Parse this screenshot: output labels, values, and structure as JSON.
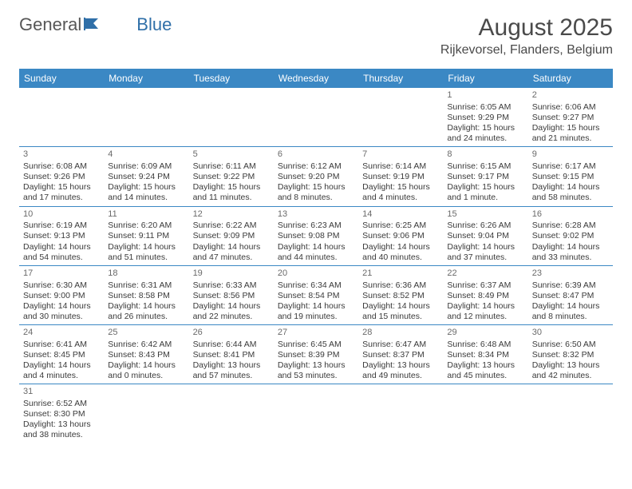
{
  "logo": {
    "text1": "General",
    "text2": "Blue"
  },
  "title": "August 2025",
  "location": "Rijkevorsel, Flanders, Belgium",
  "colors": {
    "header_bg": "#3b88c4",
    "border": "#3b88c4",
    "logo_accent": "#2f6fa8"
  },
  "weekdays": [
    "Sunday",
    "Monday",
    "Tuesday",
    "Wednesday",
    "Thursday",
    "Friday",
    "Saturday"
  ],
  "weeks": [
    [
      null,
      null,
      null,
      null,
      null,
      {
        "n": "1",
        "sr": "Sunrise: 6:05 AM",
        "ss": "Sunset: 9:29 PM",
        "d1": "Daylight: 15 hours",
        "d2": "and 24 minutes."
      },
      {
        "n": "2",
        "sr": "Sunrise: 6:06 AM",
        "ss": "Sunset: 9:27 PM",
        "d1": "Daylight: 15 hours",
        "d2": "and 21 minutes."
      }
    ],
    [
      {
        "n": "3",
        "sr": "Sunrise: 6:08 AM",
        "ss": "Sunset: 9:26 PM",
        "d1": "Daylight: 15 hours",
        "d2": "and 17 minutes."
      },
      {
        "n": "4",
        "sr": "Sunrise: 6:09 AM",
        "ss": "Sunset: 9:24 PM",
        "d1": "Daylight: 15 hours",
        "d2": "and 14 minutes."
      },
      {
        "n": "5",
        "sr": "Sunrise: 6:11 AM",
        "ss": "Sunset: 9:22 PM",
        "d1": "Daylight: 15 hours",
        "d2": "and 11 minutes."
      },
      {
        "n": "6",
        "sr": "Sunrise: 6:12 AM",
        "ss": "Sunset: 9:20 PM",
        "d1": "Daylight: 15 hours",
        "d2": "and 8 minutes."
      },
      {
        "n": "7",
        "sr": "Sunrise: 6:14 AM",
        "ss": "Sunset: 9:19 PM",
        "d1": "Daylight: 15 hours",
        "d2": "and 4 minutes."
      },
      {
        "n": "8",
        "sr": "Sunrise: 6:15 AM",
        "ss": "Sunset: 9:17 PM",
        "d1": "Daylight: 15 hours",
        "d2": "and 1 minute."
      },
      {
        "n": "9",
        "sr": "Sunrise: 6:17 AM",
        "ss": "Sunset: 9:15 PM",
        "d1": "Daylight: 14 hours",
        "d2": "and 58 minutes."
      }
    ],
    [
      {
        "n": "10",
        "sr": "Sunrise: 6:19 AM",
        "ss": "Sunset: 9:13 PM",
        "d1": "Daylight: 14 hours",
        "d2": "and 54 minutes."
      },
      {
        "n": "11",
        "sr": "Sunrise: 6:20 AM",
        "ss": "Sunset: 9:11 PM",
        "d1": "Daylight: 14 hours",
        "d2": "and 51 minutes."
      },
      {
        "n": "12",
        "sr": "Sunrise: 6:22 AM",
        "ss": "Sunset: 9:09 PM",
        "d1": "Daylight: 14 hours",
        "d2": "and 47 minutes."
      },
      {
        "n": "13",
        "sr": "Sunrise: 6:23 AM",
        "ss": "Sunset: 9:08 PM",
        "d1": "Daylight: 14 hours",
        "d2": "and 44 minutes."
      },
      {
        "n": "14",
        "sr": "Sunrise: 6:25 AM",
        "ss": "Sunset: 9:06 PM",
        "d1": "Daylight: 14 hours",
        "d2": "and 40 minutes."
      },
      {
        "n": "15",
        "sr": "Sunrise: 6:26 AM",
        "ss": "Sunset: 9:04 PM",
        "d1": "Daylight: 14 hours",
        "d2": "and 37 minutes."
      },
      {
        "n": "16",
        "sr": "Sunrise: 6:28 AM",
        "ss": "Sunset: 9:02 PM",
        "d1": "Daylight: 14 hours",
        "d2": "and 33 minutes."
      }
    ],
    [
      {
        "n": "17",
        "sr": "Sunrise: 6:30 AM",
        "ss": "Sunset: 9:00 PM",
        "d1": "Daylight: 14 hours",
        "d2": "and 30 minutes."
      },
      {
        "n": "18",
        "sr": "Sunrise: 6:31 AM",
        "ss": "Sunset: 8:58 PM",
        "d1": "Daylight: 14 hours",
        "d2": "and 26 minutes."
      },
      {
        "n": "19",
        "sr": "Sunrise: 6:33 AM",
        "ss": "Sunset: 8:56 PM",
        "d1": "Daylight: 14 hours",
        "d2": "and 22 minutes."
      },
      {
        "n": "20",
        "sr": "Sunrise: 6:34 AM",
        "ss": "Sunset: 8:54 PM",
        "d1": "Daylight: 14 hours",
        "d2": "and 19 minutes."
      },
      {
        "n": "21",
        "sr": "Sunrise: 6:36 AM",
        "ss": "Sunset: 8:52 PM",
        "d1": "Daylight: 14 hours",
        "d2": "and 15 minutes."
      },
      {
        "n": "22",
        "sr": "Sunrise: 6:37 AM",
        "ss": "Sunset: 8:49 PM",
        "d1": "Daylight: 14 hours",
        "d2": "and 12 minutes."
      },
      {
        "n": "23",
        "sr": "Sunrise: 6:39 AM",
        "ss": "Sunset: 8:47 PM",
        "d1": "Daylight: 14 hours",
        "d2": "and 8 minutes."
      }
    ],
    [
      {
        "n": "24",
        "sr": "Sunrise: 6:41 AM",
        "ss": "Sunset: 8:45 PM",
        "d1": "Daylight: 14 hours",
        "d2": "and 4 minutes."
      },
      {
        "n": "25",
        "sr": "Sunrise: 6:42 AM",
        "ss": "Sunset: 8:43 PM",
        "d1": "Daylight: 14 hours",
        "d2": "and 0 minutes."
      },
      {
        "n": "26",
        "sr": "Sunrise: 6:44 AM",
        "ss": "Sunset: 8:41 PM",
        "d1": "Daylight: 13 hours",
        "d2": "and 57 minutes."
      },
      {
        "n": "27",
        "sr": "Sunrise: 6:45 AM",
        "ss": "Sunset: 8:39 PM",
        "d1": "Daylight: 13 hours",
        "d2": "and 53 minutes."
      },
      {
        "n": "28",
        "sr": "Sunrise: 6:47 AM",
        "ss": "Sunset: 8:37 PM",
        "d1": "Daylight: 13 hours",
        "d2": "and 49 minutes."
      },
      {
        "n": "29",
        "sr": "Sunrise: 6:48 AM",
        "ss": "Sunset: 8:34 PM",
        "d1": "Daylight: 13 hours",
        "d2": "and 45 minutes."
      },
      {
        "n": "30",
        "sr": "Sunrise: 6:50 AM",
        "ss": "Sunset: 8:32 PM",
        "d1": "Daylight: 13 hours",
        "d2": "and 42 minutes."
      }
    ],
    [
      {
        "n": "31",
        "sr": "Sunrise: 6:52 AM",
        "ss": "Sunset: 8:30 PM",
        "d1": "Daylight: 13 hours",
        "d2": "and 38 minutes."
      },
      null,
      null,
      null,
      null,
      null,
      null
    ]
  ]
}
